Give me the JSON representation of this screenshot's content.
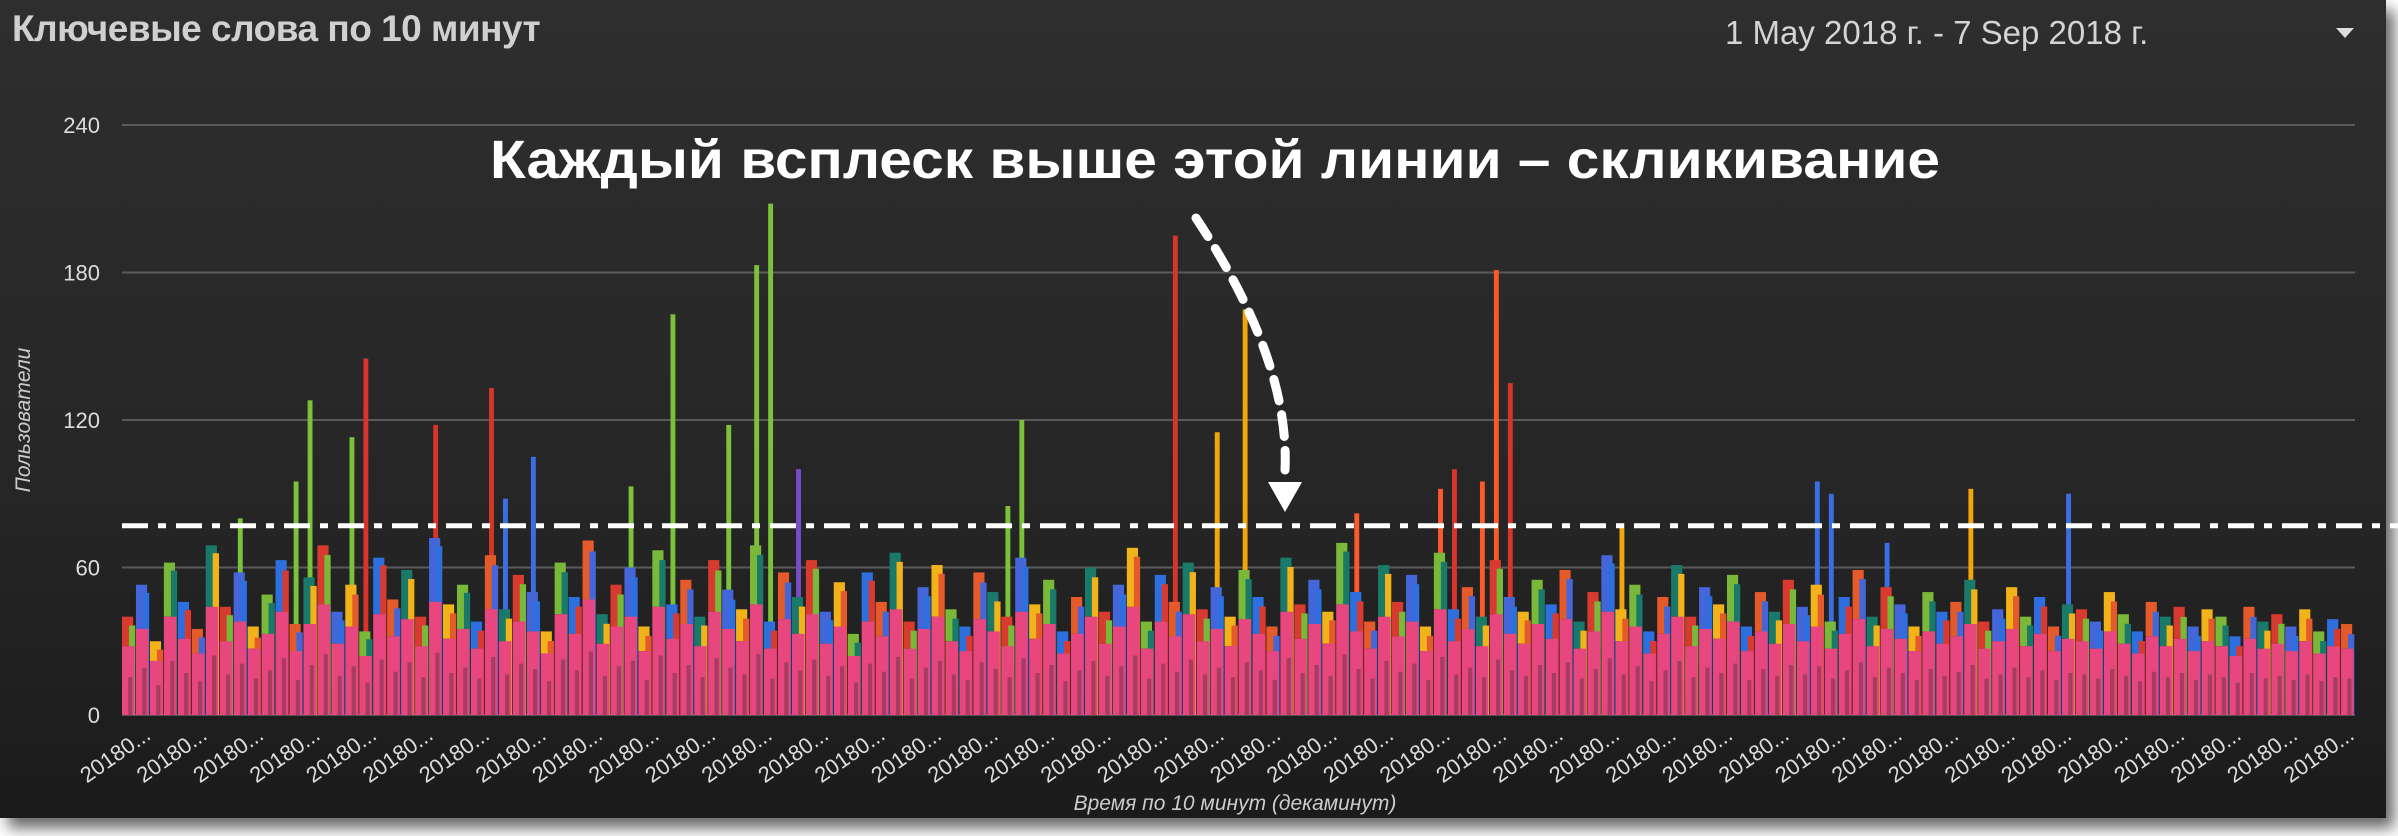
{
  "header": {
    "title": "Ключевые слова по 10 минут",
    "date_range": "1 May 2018 г. - 7 Sep 2018 г.",
    "dropdown_icon": "triangle-down-icon"
  },
  "annotation": {
    "text": "Каждый всплеск выше этой линии – скликивание",
    "threshold": 77
  },
  "chart_data": {
    "type": "bar",
    "stacked": true,
    "xlabel": "Время по 10 минут (декаминут)",
    "ylabel": "Пользователи",
    "ylim": [
      0,
      240
    ],
    "yticks": [
      0,
      60,
      120,
      180,
      240
    ],
    "grid": true,
    "xtick_label": "20180...",
    "xtick_count": 40,
    "colors": {
      "base": "#e8467f",
      "mix": [
        "#d93a2f",
        "#4466d8",
        "#f2b31a",
        "#7ab83a",
        "#2e6fe0",
        "#e45a2a",
        "#1a7a6a"
      ],
      "green": "#7cc13b",
      "red": "#d8342b",
      "blue": "#3a6fe3",
      "amber": "#f1a60c",
      "orangered": "#fb5a2c",
      "purple": "#7b4bc8"
    },
    "base_values": [
      28,
      35,
      22,
      40,
      31,
      25,
      44,
      30,
      38,
      27,
      33,
      42,
      26,
      37,
      45,
      29,
      36,
      24,
      41,
      32,
      39,
      28,
      46,
      31,
      35,
      27,
      43,
      30,
      38,
      34,
      25,
      41,
      33,
      47,
      29,
      36,
      40,
      26,
      44,
      31,
      37,
      28,
      42,
      35,
      30,
      45,
      27,
      39,
      33,
      41,
      29,
      36,
      24,
      38,
      32,
      43,
      27,
      35,
      40,
      30,
      26,
      39,
      34,
      28,
      42,
      31,
      37,
      25,
      33,
      40,
      29,
      36,
      44,
      27,
      38,
      32,
      41,
      30,
      35,
      28,
      39,
      33,
      26,
      42,
      31,
      37,
      29,
      45,
      34,
      27,
      40,
      32,
      38,
      26,
      43,
      30,
      35,
      28,
      41,
      33,
      29,
      37,
      31,
      39,
      27,
      34,
      42,
      30,
      36,
      25,
      33,
      40,
      28,
      35,
      31,
      38,
      26,
      34,
      29,
      37,
      30,
      36,
      27,
      33,
      39,
      28,
      35,
      31,
      26,
      34,
      29,
      32,
      37,
      27,
      30,
      35,
      28,
      33,
      26,
      31,
      30,
      27,
      34,
      29,
      25,
      32,
      28,
      31,
      26,
      30,
      28,
      24,
      31,
      27,
      29,
      26,
      30,
      25,
      28,
      27
    ],
    "other_values": [
      12,
      18,
      8,
      22,
      15,
      10,
      25,
      14,
      20,
      9,
      16,
      21,
      11,
      19,
      24,
      13,
      17,
      10,
      23,
      15,
      20,
      12,
      26,
      14,
      18,
      11,
      22,
      13,
      19,
      16,
      9,
      21,
      15,
      24,
      12,
      17,
      20,
      10,
      23,
      14,
      18,
      12,
      21,
      16,
      13,
      24,
      11,
      19,
      15,
      22,
      13,
      18,
      9,
      20,
      14,
      23,
      11,
      17,
      21,
      13,
      10,
      19,
      16,
      12,
      22,
      14,
      18,
      9,
      15,
      20,
      13,
      17,
      24,
      11,
      19,
      14,
      21,
      13,
      17,
      12,
      20,
      15,
      10,
      22,
      14,
      18,
      13,
      25,
      16,
      11,
      21,
      14,
      19,
      10,
      23,
      13,
      17,
      12,
      22,
      15,
      13,
      18,
      14,
      20,
      11,
      16,
      23,
      13,
      17,
      9,
      15,
      21,
      12,
      17,
      14,
      19,
      10,
      16,
      13,
      18,
      14,
      17,
      11,
      15,
      20,
      12,
      17,
      14,
      10,
      16,
      13,
      14,
      18,
      11,
      13,
      17,
      12,
      15,
      10,
      14,
      13,
      11,
      16,
      12,
      9,
      14,
      12,
      13,
      10,
      13,
      12,
      8,
      13,
      11,
      12,
      10,
      13,
      9,
      11,
      10
    ],
    "spikes": [
      {
        "index": 8,
        "value": 80,
        "color": "green"
      },
      {
        "index": 12,
        "value": 95,
        "color": "green"
      },
      {
        "index": 13,
        "value": 128,
        "color": "green"
      },
      {
        "index": 16,
        "value": 113,
        "color": "green"
      },
      {
        "index": 17,
        "value": 145,
        "color": "red"
      },
      {
        "index": 22,
        "value": 118,
        "color": "red"
      },
      {
        "index": 26,
        "value": 133,
        "color": "red"
      },
      {
        "index": 27,
        "value": 88,
        "color": "blue"
      },
      {
        "index": 29,
        "value": 105,
        "color": "blue"
      },
      {
        "index": 36,
        "value": 93,
        "color": "green"
      },
      {
        "index": 39,
        "value": 163,
        "color": "green"
      },
      {
        "index": 43,
        "value": 118,
        "color": "green"
      },
      {
        "index": 45,
        "value": 183,
        "color": "green"
      },
      {
        "index": 46,
        "value": 208,
        "color": "green"
      },
      {
        "index": 48,
        "value": 100,
        "color": "purple"
      },
      {
        "index": 63,
        "value": 85,
        "color": "green"
      },
      {
        "index": 64,
        "value": 120,
        "color": "green"
      },
      {
        "index": 75,
        "value": 195,
        "color": "red"
      },
      {
        "index": 78,
        "value": 115,
        "color": "amber"
      },
      {
        "index": 80,
        "value": 165,
        "color": "amber"
      },
      {
        "index": 88,
        "value": 82,
        "color": "orangered"
      },
      {
        "index": 94,
        "value": 92,
        "color": "orangered"
      },
      {
        "index": 95,
        "value": 100,
        "color": "red"
      },
      {
        "index": 97,
        "value": 95,
        "color": "orangered"
      },
      {
        "index": 98,
        "value": 181,
        "color": "orangered"
      },
      {
        "index": 99,
        "value": 135,
        "color": "red"
      },
      {
        "index": 107,
        "value": 78,
        "color": "amber"
      },
      {
        "index": 121,
        "value": 95,
        "color": "blue"
      },
      {
        "index": 122,
        "value": 90,
        "color": "blue"
      },
      {
        "index": 126,
        "value": 70,
        "color": "blue"
      },
      {
        "index": 132,
        "value": 92,
        "color": "amber"
      },
      {
        "index": 139,
        "value": 90,
        "color": "blue"
      }
    ]
  }
}
